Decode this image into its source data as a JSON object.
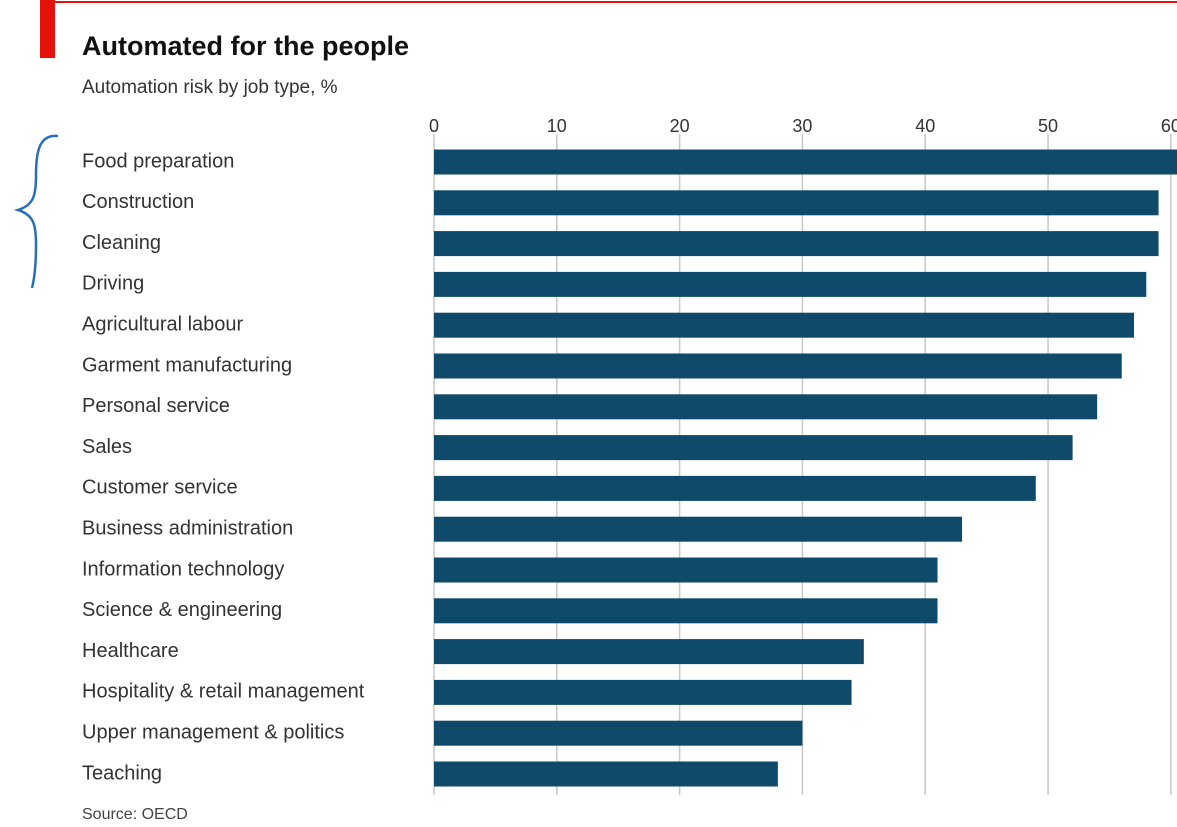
{
  "chart_data": {
    "type": "bar",
    "orientation": "horizontal",
    "title": "Automated for the people",
    "subtitle": "Automation risk by job type, %",
    "source": "Source: OECD",
    "categories": [
      "Food preparation",
      "Construction",
      "Cleaning",
      "Driving",
      "Agricultural labour",
      "Garment manufacturing",
      "Personal service",
      "Sales",
      "Customer service",
      "Business administration",
      "Information technology",
      "Science & engineering",
      "Healthcare",
      "Hospitality & retail management",
      "Upper management & politics",
      "Teaching"
    ],
    "values": [
      60.5,
      59,
      59,
      58,
      57,
      56,
      54,
      52,
      49,
      43,
      41,
      41,
      35,
      34,
      30,
      28
    ],
    "color": "#0f4a6b",
    "xlim": [
      0,
      60.5
    ],
    "xticks": [
      0,
      10,
      20,
      30,
      40,
      50,
      60
    ],
    "grid": true
  }
}
